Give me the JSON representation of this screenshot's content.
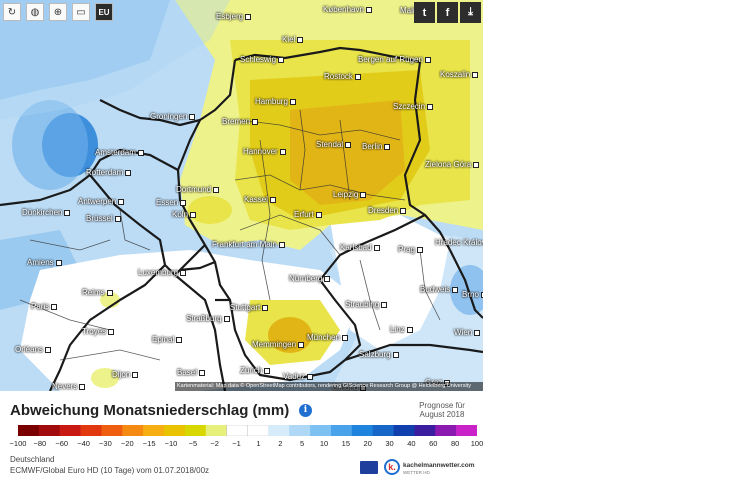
{
  "toolbar": {
    "eu_label": "EU",
    "icons": [
      "refresh-icon",
      "globe-icon",
      "zoom-icon",
      "scale-icon"
    ]
  },
  "share_icons": [
    "twitter-icon",
    "facebook-icon",
    "download-icon"
  ],
  "map": {
    "cities": [
      {
        "name": "Esbjerg"
      },
      {
        "name": "København"
      },
      {
        "name": "Malmö"
      },
      {
        "name": "Schleswig"
      },
      {
        "name": "Bergen auf Rügen"
      },
      {
        "name": "Kiel"
      },
      {
        "name": "Rostock"
      },
      {
        "name": "Koszalin"
      },
      {
        "name": "Groningen"
      },
      {
        "name": "Hamburg"
      },
      {
        "name": "Bremen"
      },
      {
        "name": "Szczecin"
      },
      {
        "name": "Amsterdam"
      },
      {
        "name": "Hannover"
      },
      {
        "name": "Stendal"
      },
      {
        "name": "Berlin"
      },
      {
        "name": "Zielona Góra"
      },
      {
        "name": "Rotterdam"
      },
      {
        "name": "Dortmund"
      },
      {
        "name": "Leipzig"
      },
      {
        "name": "Kassel"
      },
      {
        "name": "Antwerpen"
      },
      {
        "name": "Essen"
      },
      {
        "name": "Dünkirchen"
      },
      {
        "name": "Brüssel"
      },
      {
        "name": "Köln"
      },
      {
        "name": "Erfurt"
      },
      {
        "name": "Dresden"
      },
      {
        "name": "Frankfurt am Main"
      },
      {
        "name": "Karlsbad"
      },
      {
        "name": "Prag"
      },
      {
        "name": "Hradec Králové"
      },
      {
        "name": "Amiens"
      },
      {
        "name": "Luxemburg"
      },
      {
        "name": "Nürnberg"
      },
      {
        "name": "Reims"
      },
      {
        "name": "Paris"
      },
      {
        "name": "Stuttgart"
      },
      {
        "name": "Straubing"
      },
      {
        "name": "Budweis"
      },
      {
        "name": "Brno"
      },
      {
        "name": "Straßburg"
      },
      {
        "name": "Troyes"
      },
      {
        "name": "München"
      },
      {
        "name": "Memmingen"
      },
      {
        "name": "Linz"
      },
      {
        "name": "Wien"
      },
      {
        "name": "Epinal"
      },
      {
        "name": "Orléans"
      },
      {
        "name": "Basel"
      },
      {
        "name": "Salzburg"
      },
      {
        "name": "Dijon"
      },
      {
        "name": "Zürich"
      },
      {
        "name": "Vaduz"
      },
      {
        "name": "Graz"
      },
      {
        "name": "Nevers"
      },
      {
        "name": "Gmünd"
      }
    ],
    "attribution": "Kartenmaterial: Map data © OpenStreetMap contributors, rendering GIScience Research Group @ Heidelberg University"
  },
  "title": "Abweichung Monatsniederschlag (mm)",
  "info_icon": "info-icon",
  "forecast": {
    "line1": "Prognose für",
    "line2": "August 2018"
  },
  "legend": {
    "ticks": [
      "−100",
      "−80",
      "−60",
      "−40",
      "−30",
      "−20",
      "−15",
      "−10",
      "−5",
      "−2",
      "−1",
      "1",
      "2",
      "5",
      "10",
      "15",
      "20",
      "30",
      "40",
      "60",
      "80",
      "100"
    ],
    "colors": [
      "#7a0000",
      "#a10b0b",
      "#c81a12",
      "#e2380f",
      "#ef5d10",
      "#f58a12",
      "#f7ae13",
      "#e9c200",
      "#d8d800",
      "#e7f07a",
      "#ffffff",
      "#ffffff",
      "#d7ecfb",
      "#afd8f7",
      "#7dc0f2",
      "#4aa3ea",
      "#1f84de",
      "#1767c8",
      "#123fae",
      "#3b1e9f",
      "#8a1ab0",
      "#c822c8"
    ]
  },
  "footer": {
    "region": "Deutschland",
    "model": "ECMWF/Global Euro HD (10 Tage) vom 01.07.2018/00z"
  },
  "brand": {
    "name": "kachelmannwetter.com",
    "sub": "WETTER HD",
    "logo_letter": "k."
  }
}
